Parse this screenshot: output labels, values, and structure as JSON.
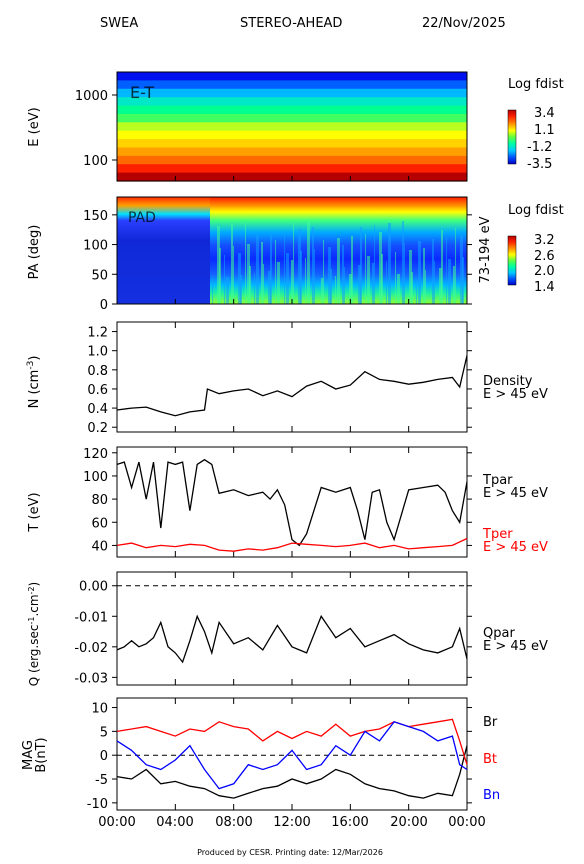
{
  "header": {
    "instrument": "SWEA",
    "mission": "STEREO-AHEAD",
    "date": "22/Nov/2025"
  },
  "footer": {
    "text": "Produced by CESR.   Printing date: 12/Mar/2026"
  },
  "chart_data": [
    {
      "type": "heatmap",
      "panel": "energy-time",
      "panel_label": "E-T",
      "ylabel": "E (eV)",
      "yscale": "log",
      "ylim": [
        50,
        2200
      ],
      "yticks": [
        "1000",
        "100"
      ],
      "colorbar": {
        "title": "Log fdist",
        "ticks": [
          "3.4",
          "1.1",
          "-1.2",
          "-3.5"
        ],
        "range": [
          -3.5,
          3.4
        ]
      },
      "colors": [
        "#b40000",
        "#ff2000",
        "#ff6a00",
        "#ffa000",
        "#ffd200",
        "#ffff00",
        "#b8ff20",
        "#40ff60",
        "#00ff90",
        "#00e8c8",
        "#00b8ff",
        "#0060ff",
        "#0010ee"
      ]
    },
    {
      "type": "heatmap",
      "panel": "pitch-angle",
      "panel_label": "PAD",
      "ylabel": "PA (deg)",
      "ylim": [
        0,
        180
      ],
      "yticks": [
        "150",
        "100",
        "50",
        "0"
      ],
      "right_label": "73-194 eV",
      "colorbar": {
        "title": "Log fdist",
        "ticks": [
          "3.2",
          "2.6",
          "2.0",
          "1.4"
        ],
        "range": [
          1.4,
          3.2
        ]
      }
    },
    {
      "type": "line",
      "panel": "density",
      "ylabel_main": "N (cm",
      "ylabel_exp": "-3",
      "ylabel_end": ")",
      "ylim": [
        0.15,
        1.3
      ],
      "yticks": [
        "1.2",
        "1.0",
        "0.8",
        "0.6",
        "0.4",
        "0.2"
      ],
      "series": [
        {
          "name": "Density",
          "note": "E > 45 eV",
          "color": "#000000",
          "x": [
            0,
            1,
            2,
            3,
            4,
            5,
            6,
            6.2,
            7,
            8,
            9,
            10,
            11,
            12,
            13,
            14,
            15,
            16,
            17,
            18,
            19,
            20,
            21,
            22,
            23,
            23.5,
            24
          ],
          "y": [
            0.38,
            0.4,
            0.41,
            0.36,
            0.32,
            0.36,
            0.38,
            0.6,
            0.55,
            0.58,
            0.6,
            0.53,
            0.58,
            0.52,
            0.63,
            0.68,
            0.6,
            0.64,
            0.78,
            0.7,
            0.68,
            0.65,
            0.67,
            0.7,
            0.72,
            0.62,
            0.95
          ]
        }
      ]
    },
    {
      "type": "line",
      "panel": "temperature",
      "ylabel": "T (eV)",
      "ylim": [
        30,
        125
      ],
      "yticks": [
        "120",
        "100",
        "80",
        "60",
        "40"
      ],
      "series": [
        {
          "name": "Tpar",
          "note": "E > 45 eV",
          "color": "#000000",
          "x": [
            0,
            0.5,
            1,
            1.5,
            2,
            2.5,
            3,
            3.5,
            4,
            4.5,
            5,
            5.5,
            6,
            6.5,
            7,
            8,
            9,
            10,
            10.5,
            11,
            11.5,
            12,
            12.5,
            13,
            14,
            15,
            16,
            16.5,
            17,
            17.5,
            18,
            18.5,
            19,
            20,
            21,
            22,
            22.5,
            23,
            23.5,
            24
          ],
          "y": [
            110,
            112,
            90,
            112,
            80,
            112,
            55,
            112,
            110,
            112,
            70,
            110,
            114,
            110,
            85,
            88,
            83,
            86,
            80,
            88,
            75,
            45,
            40,
            50,
            90,
            86,
            90,
            70,
            45,
            86,
            88,
            60,
            45,
            88,
            90,
            92,
            86,
            70,
            60,
            95
          ]
        },
        {
          "name": "Tper",
          "note": "E > 45 eV",
          "color": "#ff0000",
          "x": [
            0,
            1,
            2,
            3,
            4,
            5,
            6,
            7,
            8,
            9,
            10,
            11,
            12,
            13,
            14,
            15,
            16,
            17,
            18,
            19,
            20,
            21,
            22,
            23,
            24
          ],
          "y": [
            40,
            42,
            38,
            40,
            39,
            41,
            40,
            36,
            35,
            37,
            36,
            38,
            42,
            41,
            40,
            39,
            40,
            42,
            38,
            40,
            37,
            38,
            39,
            40,
            46
          ]
        }
      ]
    },
    {
      "type": "line",
      "panel": "heat-flux",
      "ylabel_main": "Q (erg.sec",
      "ylabel_exp1": "-1",
      "ylabel_mid": ".cm",
      "ylabel_exp2": "-2",
      "ylabel_end": ")",
      "ylim": [
        -0.0325,
        0.0045
      ],
      "yticks": [
        "0.00",
        "-0.01",
        "-0.02",
        "-0.03"
      ],
      "reference_line": 0,
      "series": [
        {
          "name": "Qpar",
          "note": "E > 45 eV",
          "color": "#000000",
          "x": [
            0,
            0.5,
            1,
            1.5,
            2,
            2.5,
            3,
            3.5,
            4,
            4.5,
            5,
            5.5,
            6,
            6.5,
            7,
            8,
            9,
            10,
            11,
            12,
            13,
            14,
            15,
            16,
            17,
            18,
            19,
            20,
            21,
            22,
            23,
            23.5,
            24
          ],
          "y": [
            -0.021,
            -0.02,
            -0.018,
            -0.02,
            -0.019,
            -0.017,
            -0.012,
            -0.02,
            -0.022,
            -0.025,
            -0.018,
            -0.01,
            -0.015,
            -0.022,
            -0.012,
            -0.019,
            -0.017,
            -0.021,
            -0.013,
            -0.02,
            -0.022,
            -0.01,
            -0.017,
            -0.014,
            -0.02,
            -0.018,
            -0.016,
            -0.019,
            -0.021,
            -0.022,
            -0.02,
            -0.014,
            -0.024
          ]
        }
      ]
    },
    {
      "type": "line",
      "panel": "magnetic-field",
      "ylabel_line1": "MAG",
      "ylabel_line2": "B(nT)",
      "ylim": [
        -11.5,
        12
      ],
      "yticks": [
        "10",
        "5",
        "0",
        "-5",
        "-10"
      ],
      "reference_line": 0,
      "series": [
        {
          "name": "Br",
          "color": "#000000",
          "x": [
            0,
            1,
            2,
            3,
            4,
            5,
            6,
            7,
            8,
            9,
            10,
            11,
            12,
            13,
            14,
            15,
            16,
            17,
            18,
            19,
            20,
            21,
            22,
            23,
            23.5,
            24
          ],
          "y": [
            -4.5,
            -5.0,
            -3.0,
            -6.0,
            -5.5,
            -6.5,
            -7.0,
            -8.5,
            -9.0,
            -8.0,
            -7.0,
            -6.5,
            -5.0,
            -6.0,
            -5.0,
            -3.0,
            -4.0,
            -6.0,
            -7.0,
            -7.5,
            -8.5,
            -9.0,
            -8.0,
            -8.5,
            -4.0,
            2.0
          ]
        },
        {
          "name": "Bt",
          "color": "#ff0000",
          "x": [
            0,
            1,
            2,
            3,
            4,
            5,
            6,
            7,
            8,
            9,
            10,
            11,
            12,
            13,
            14,
            15,
            16,
            17,
            18,
            19,
            20,
            21,
            22,
            23,
            23.5,
            24
          ],
          "y": [
            5.0,
            5.5,
            6.0,
            5.0,
            4.0,
            5.5,
            5.0,
            7.0,
            6.0,
            5.5,
            3.0,
            5.0,
            3.5,
            5.0,
            4.0,
            6.5,
            4.0,
            5.0,
            5.5,
            7.0,
            6.0,
            6.5,
            7.0,
            7.5,
            3.0,
            -2.0
          ]
        },
        {
          "name": "Bn",
          "color": "#0000ff",
          "x": [
            0,
            1,
            2,
            3,
            4,
            5,
            6,
            7,
            8,
            9,
            10,
            11,
            12,
            13,
            14,
            15,
            16,
            17,
            18,
            19,
            20,
            21,
            22,
            23,
            23.5,
            24
          ],
          "y": [
            3.0,
            1.0,
            -2.0,
            -3.0,
            -1.0,
            2.0,
            -3.0,
            -7.0,
            -6.0,
            -2.0,
            -3.0,
            -2.0,
            1.0,
            -3.0,
            -2.0,
            2.0,
            0.0,
            5.0,
            3.0,
            7.0,
            6.0,
            5.0,
            3.0,
            4.0,
            -2.0,
            -3.0
          ]
        }
      ]
    }
  ],
  "x_axis": {
    "labels": [
      "00:00",
      "04:00",
      "08:00",
      "12:00",
      "16:00",
      "20:00",
      "00:00"
    ],
    "range_hours": [
      0,
      24
    ]
  }
}
